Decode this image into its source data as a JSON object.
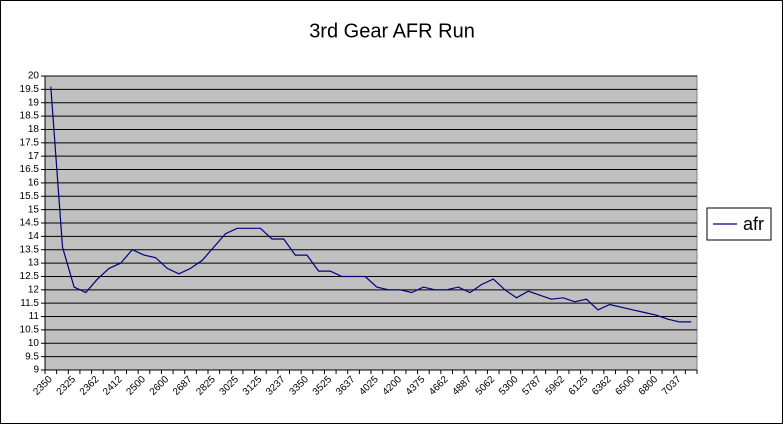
{
  "chart_data": {
    "type": "line",
    "title": "3rd Gear AFR Run",
    "categories": [
      "2350",
      null,
      "2325",
      null,
      "2362",
      null,
      "2412",
      null,
      "2500",
      null,
      "2600",
      null,
      "2687",
      null,
      "2825",
      null,
      "3025",
      null,
      "3125",
      null,
      "3237",
      null,
      "3350",
      null,
      "3525",
      null,
      "3637",
      null,
      "4025",
      null,
      "4200",
      null,
      "4375",
      null,
      "4662",
      null,
      "4887",
      null,
      "5062",
      null,
      "5300",
      null,
      "5787",
      null,
      "5962",
      null,
      "6125",
      null,
      "6362",
      null,
      "6500",
      null,
      "6800",
      null,
      "7037",
      null
    ],
    "series": [
      {
        "name": "afr",
        "color": "#000080",
        "values": [
          19.6,
          13.6,
          12.1,
          11.9,
          12.4,
          12.8,
          13.0,
          13.5,
          13.3,
          13.2,
          12.8,
          12.6,
          12.8,
          13.1,
          13.6,
          14.1,
          14.3,
          14.3,
          14.3,
          13.9,
          13.9,
          13.3,
          13.3,
          12.7,
          12.7,
          12.5,
          12.5,
          12.5,
          12.1,
          12.0,
          12.0,
          11.9,
          12.1,
          12.0,
          12.0,
          12.1,
          11.9,
          12.2,
          12.4,
          12.0,
          11.7,
          11.95,
          11.8,
          11.65,
          11.7,
          11.55,
          11.65,
          11.25,
          11.45,
          11.35,
          11.25,
          11.15,
          11.05,
          10.9,
          10.8,
          10.8
        ]
      }
    ],
    "ylim": [
      9,
      20
    ],
    "yticks": [
      9,
      9.5,
      10,
      10.5,
      11,
      11.5,
      12,
      12.5,
      13,
      13.5,
      14,
      14.5,
      15,
      15.5,
      16,
      16.5,
      17,
      17.5,
      18,
      18.5,
      19,
      19.5,
      20
    ],
    "grid": true,
    "legend": "right",
    "plot_background": "#c0c0c0"
  }
}
